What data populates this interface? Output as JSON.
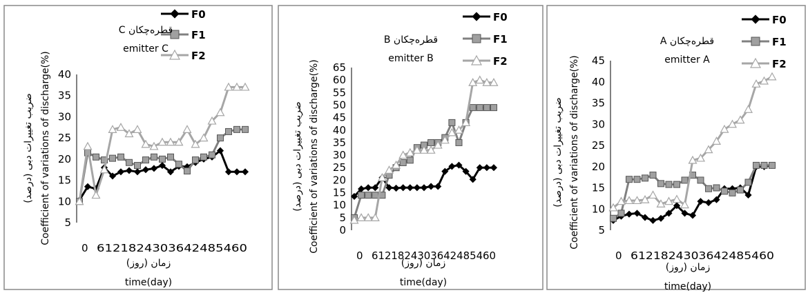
{
  "colors": {
    "F0": "#000000",
    "F1": "#808080",
    "F2": "#a6a6a6",
    "F1_marker_fill": "#a0a0a0",
    "F2_marker_fill": "#ffffff",
    "frame": "#888888"
  },
  "chart_data": [
    {
      "type": "line",
      "title": "قطره‌چکان C",
      "subtitle": "emitter C",
      "xlabel_fa": "زمان (روز)",
      "xlabel": "time(day)",
      "ylabel_fa": "ضریب تغییرات دبی (درصد)",
      "ylabel": "Coefficient of variations of discharge(%)",
      "ylim": [
        5,
        40
      ],
      "yticks": [
        "5",
        "10",
        "15",
        "20",
        "25",
        "30",
        "35",
        "40"
      ],
      "xticks_text": [
        "0",
        "6",
        "12",
        "18",
        "24",
        "30",
        "36",
        "42",
        "48",
        "54",
        "60"
      ],
      "xlim": [
        0,
        60
      ],
      "legend_position": "top-right",
      "series": [
        {
          "name": "F0",
          "marker": "diamond",
          "x": [
            0,
            3,
            6,
            9,
            12,
            15,
            18,
            21,
            24,
            27,
            30,
            33,
            36,
            39,
            42,
            45,
            48,
            51,
            54,
            57,
            60
          ],
          "values": [
            10.3,
            13.5,
            13,
            18,
            16,
            17,
            17.3,
            17,
            17.5,
            17.8,
            18.5,
            17,
            18.3,
            18.2,
            19.2,
            20,
            20.5,
            22,
            17,
            17,
            17
          ]
        },
        {
          "name": "F1",
          "marker": "square",
          "x": [
            0,
            3,
            6,
            9,
            12,
            15,
            18,
            21,
            24,
            27,
            30,
            33,
            36,
            39,
            42,
            45,
            48,
            51,
            54,
            57,
            60
          ],
          "values": [
            10,
            21.5,
            20.5,
            19.8,
            20.2,
            20.5,
            19.2,
            18.5,
            19.8,
            20.5,
            20,
            20.5,
            18.8,
            17.2,
            19.8,
            20.5,
            21,
            25,
            26.5,
            27,
            27
          ]
        },
        {
          "name": "F2",
          "marker": "triangle",
          "x": [
            0,
            3,
            6,
            9,
            12,
            15,
            18,
            21,
            24,
            27,
            30,
            33,
            36,
            39,
            42,
            45,
            48,
            51,
            54,
            57,
            60
          ],
          "values": [
            10,
            23,
            11.5,
            17.5,
            27,
            27.5,
            26,
            27,
            23.5,
            23,
            24,
            24,
            24,
            27,
            23.5,
            25,
            29,
            31,
            37,
            37,
            37
          ]
        }
      ]
    },
    {
      "type": "line",
      "title": "قطره‌چکان  B",
      "subtitle": "emitter B",
      "xlabel_fa": "زمان (روز)",
      "xlabel": "time(day)",
      "ylabel_fa": "ضریب تغییرات دبی (درصد)",
      "ylabel": "Coefficient of variations of discharge(%)",
      "ylim": [
        0,
        65
      ],
      "yticks": [
        "0",
        "5",
        "10",
        "15",
        "20",
        "25",
        "30",
        "35",
        "40",
        "45",
        "50",
        "55",
        "60",
        "65"
      ],
      "xticks_text": [
        "0",
        "6",
        "12",
        "18",
        "24",
        "30",
        "36",
        "42",
        "48",
        "54",
        "60"
      ],
      "xlim": [
        0,
        60
      ],
      "legend_position": "top-right",
      "series": [
        {
          "name": "F0",
          "marker": "diamond",
          "x": [
            0,
            3,
            6,
            9,
            12,
            15,
            18,
            21,
            24,
            27,
            30,
            33,
            36,
            39,
            42,
            45,
            48,
            51,
            54,
            57,
            60
          ],
          "values": [
            13.5,
            16.5,
            17,
            17,
            21,
            17,
            16.8,
            17,
            17,
            17,
            17,
            17.5,
            17.5,
            23.5,
            25.5,
            26,
            23.5,
            20.3,
            25,
            25,
            25
          ]
        },
        {
          "name": "F1",
          "marker": "square",
          "x": [
            0,
            3,
            6,
            9,
            12,
            15,
            18,
            21,
            24,
            27,
            30,
            33,
            36,
            39,
            42,
            45,
            48,
            51,
            54,
            57,
            60
          ],
          "values": [
            5,
            14,
            14,
            14,
            14,
            22,
            25,
            27,
            28,
            33,
            34,
            35,
            35,
            37,
            43,
            35,
            43,
            49,
            49,
            49,
            49
          ]
        },
        {
          "name": "F2",
          "marker": "triangle",
          "x": [
            0,
            3,
            6,
            9,
            12,
            15,
            18,
            21,
            24,
            27,
            30,
            33,
            36,
            39,
            42,
            45,
            48,
            51,
            54,
            57,
            60
          ],
          "values": [
            4,
            5,
            5,
            5,
            21,
            24,
            26,
            30,
            31,
            32,
            32,
            32,
            34,
            36,
            39,
            40,
            43,
            59,
            60,
            59,
            59
          ]
        }
      ]
    },
    {
      "type": "line",
      "title": "قطره‌چکان A",
      "subtitle": "emitter A",
      "xlabel_fa": "زمان (روز)",
      "xlabel": "time(day)",
      "ylabel_fa": "ضریب تغییرات دبی (درصد)",
      "ylabel": "Coefficient of variations of discharge(%)",
      "ylim": [
        5,
        45
      ],
      "yticks": [
        "5",
        "10",
        "15",
        "20",
        "25",
        "30",
        "35",
        "40",
        "45"
      ],
      "xticks_text": [
        "0",
        "6",
        "12",
        "18",
        "24",
        "30",
        "36",
        "42",
        "48",
        "54",
        "60"
      ],
      "xlim": [
        0,
        60
      ],
      "legend_position": "top-right",
      "series": [
        {
          "name": "F0",
          "marker": "diamond",
          "x": [
            0,
            3,
            6,
            9,
            12,
            15,
            18,
            21,
            24,
            27,
            30,
            33,
            36,
            39,
            42,
            45,
            48,
            51,
            54,
            57,
            60
          ],
          "values": [
            7.3,
            8.3,
            8.8,
            9,
            8,
            7.3,
            7.8,
            9,
            10.8,
            9,
            8.5,
            11.8,
            11.5,
            12.2,
            14.8,
            14.8,
            15,
            13.3,
            20,
            20,
            20.3
          ]
        },
        {
          "name": "F1",
          "marker": "square",
          "x": [
            0,
            3,
            6,
            9,
            12,
            15,
            18,
            21,
            24,
            27,
            30,
            33,
            36,
            39,
            42,
            45,
            48,
            51,
            54,
            57,
            60
          ],
          "values": [
            7.8,
            9,
            17,
            17,
            17.3,
            18,
            16,
            15.8,
            15.8,
            16.8,
            18,
            16.8,
            14.8,
            15,
            14.2,
            13.8,
            14.5,
            16.3,
            20.3,
            20.3,
            20.3
          ]
        },
        {
          "name": "F2",
          "marker": "triangle",
          "x": [
            0,
            3,
            6,
            9,
            12,
            15,
            18,
            21,
            24,
            27,
            30,
            33,
            36,
            39,
            42,
            45,
            48,
            51,
            54,
            57,
            60
          ],
          "values": [
            10.3,
            11.8,
            12,
            12,
            12.2,
            13.3,
            11.2,
            11.8,
            12.3,
            11,
            21.5,
            22,
            24,
            26,
            28.8,
            30,
            31,
            33.5,
            39.5,
            40.2,
            41.2
          ]
        }
      ]
    }
  ]
}
